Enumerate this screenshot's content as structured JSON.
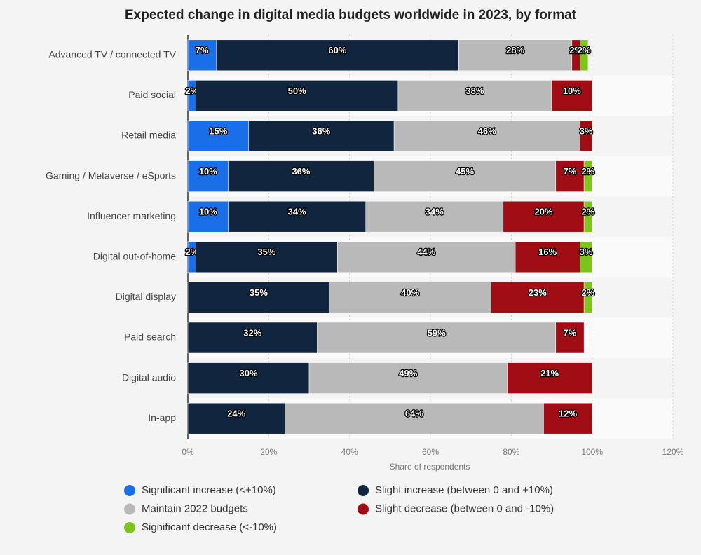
{
  "chart_data": {
    "type": "stacked-bar-horizontal",
    "title": "Expected change in digital media budgets worldwide in 2023, by format",
    "x_label": "Share of respondents",
    "categories": [
      "Advanced TV / connected TV",
      "Paid social",
      "Retail media",
      "Gaming / Metaverse / eSports",
      "Influencer marketing",
      "Digital out-of-home",
      "Digital display",
      "Paid search",
      "Digital audio",
      "In-app"
    ],
    "series": [
      {
        "name": "Significant increase (<+10%)",
        "color": "#1a6ee8",
        "values": [
          7,
          2,
          15,
          10,
          10,
          2,
          null,
          null,
          null,
          null
        ],
        "value_labels": [
          "7%",
          "2%",
          "15%",
          "10%",
          "10%",
          "2%",
          null,
          null,
          null,
          null
        ]
      },
      {
        "name": "Slight increase (between 0 and +10%)",
        "color": "#12253f",
        "values": [
          60,
          50,
          36,
          36,
          34,
          35,
          35,
          32,
          30,
          24
        ],
        "value_labels": [
          "60%",
          "50%",
          "36%",
          "36%",
          "34%",
          "35%",
          "35%",
          "32%",
          "30%",
          "24%"
        ]
      },
      {
        "name": "Maintain 2022 budgets",
        "color": "#b9b9b9",
        "values": [
          28,
          38,
          46,
          45,
          34,
          44,
          40,
          59,
          49,
          64
        ],
        "value_labels": [
          "28%",
          "38%",
          "46%",
          "45%",
          "34%",
          "44%",
          "40%",
          "59%",
          "49%",
          "64%"
        ]
      },
      {
        "name": "Slight decrease (between 0 and -10%)",
        "color": "#a00d15",
        "values": [
          2,
          10,
          3,
          7,
          20,
          16,
          23,
          7,
          21,
          12
        ],
        "value_labels": [
          "2%",
          "10%",
          "3%",
          "7%",
          "20%",
          "16%",
          "23%",
          "7%",
          "21%",
          "12%"
        ]
      },
      {
        "name": "Significant decrease (<-10%)",
        "color": "#7cc31b",
        "values": [
          2,
          null,
          null,
          2,
          2,
          3,
          2,
          null,
          null,
          null
        ],
        "value_labels": [
          "2%",
          null,
          null,
          "2%",
          "2%",
          "3%",
          "2%",
          null,
          null,
          null
        ]
      }
    ],
    "xlim": [
      0,
      120
    ],
    "xticks": [
      {
        "value": 0,
        "label": "0%"
      },
      {
        "value": 20,
        "label": "20%"
      },
      {
        "value": 40,
        "label": "40%"
      },
      {
        "value": 60,
        "label": "60%"
      },
      {
        "value": 80,
        "label": "80%"
      },
      {
        "value": 100,
        "label": "100%"
      },
      {
        "value": 120,
        "label": "120%"
      }
    ],
    "grid": true
  }
}
